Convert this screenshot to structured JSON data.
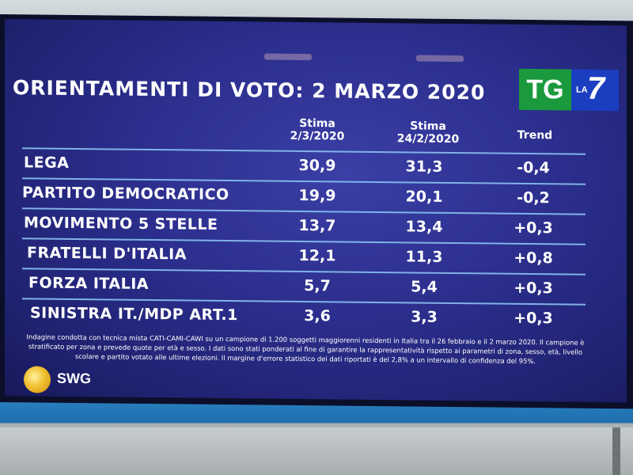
{
  "title": "ORIENTAMENTI DI VOTO: 2 MARZO 2020",
  "logo": {
    "tg": "TG",
    "la": "LA",
    "seven": "7"
  },
  "headers": {
    "col1": [
      "Stima",
      "2/3/2020"
    ],
    "col2": [
      "Stima",
      "24/2/2020"
    ],
    "col3": "Trend"
  },
  "rows": [
    {
      "party": "LEGA",
      "current": "30,9",
      "previous": "31,3",
      "trend": "-0,4"
    },
    {
      "party": "PARTITO DEMOCRATICO",
      "current": "19,9",
      "previous": "20,1",
      "trend": "-0,2"
    },
    {
      "party": "MOVIMENTO 5 STELLE",
      "current": "13,7",
      "previous": "13,4",
      "trend": "+0,3"
    },
    {
      "party": "FRATELLI D'ITALIA",
      "current": "12,1",
      "previous": "11,3",
      "trend": "+0,8"
    },
    {
      "party": "FORZA ITALIA",
      "current": "5,7",
      "previous": "5,4",
      "trend": "+0,3"
    },
    {
      "party": "SINISTRA IT./MDP ART.1",
      "current": "3,6",
      "previous": "3,3",
      "trend": "+0,3"
    }
  ],
  "note": "Indagine condotta con tecnica mista CATI-CAMI-CAWI su un campione di 1.200 soggetti maggiorenni residenti in Italia tra il 26 febbraio e il 2 marzo 2020. Il campione è stratificato per zona e prevede quote per età e sesso. I dati sono stati ponderati al fine di garantire la rappresentatività rispetto ai parametri di zona, sesso, età, livello scolare e partito votato alle ultime elezioni. Il margine d'errore statistico dei dati riportati è del 2,8% a un intervallo di confidenza del 95%.",
  "brand": "SWG",
  "colors": {
    "screen": "#2b2e8c",
    "line": "#7fb3e8",
    "tg_green": "#1a9a3d",
    "la7_blue": "#1b3ec0"
  }
}
